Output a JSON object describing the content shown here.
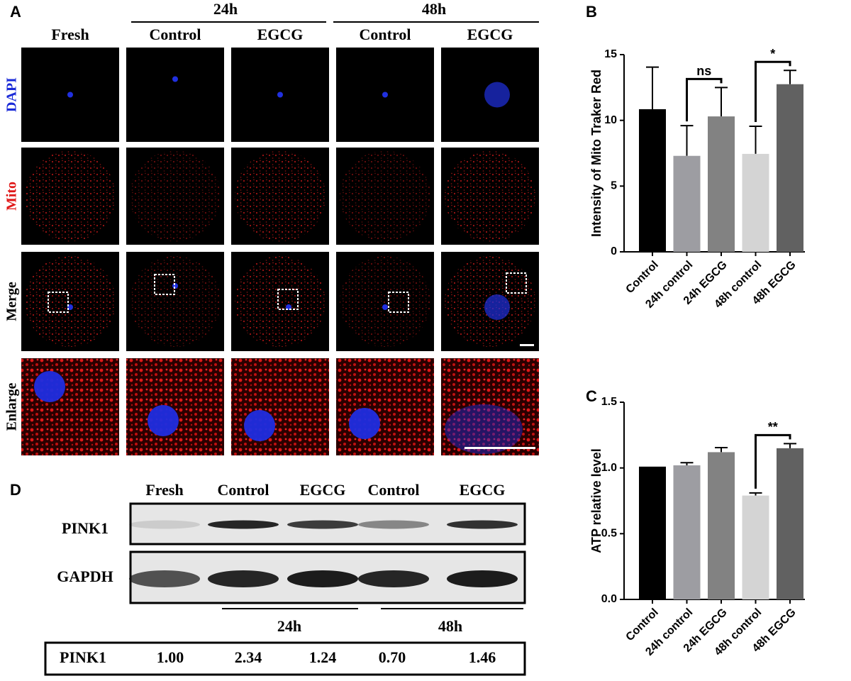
{
  "panel_a": {
    "label": "A",
    "group_labels": [
      "24h",
      "48h"
    ],
    "column_labels": [
      "Fresh",
      "Control",
      "EGCG",
      "Control",
      "EGCG"
    ],
    "row_labels": [
      "DAPI",
      "Mito",
      "Merge",
      "Enlarge"
    ]
  },
  "chart_data": [
    {
      "panel_label": "B",
      "type": "bar",
      "y_label": "Intensity of Mito Traker Red",
      "categories": [
        "Control",
        "24h control",
        "24h EGCG",
        "48h control",
        "48h EGCG"
      ],
      "values": [
        10.85,
        7.3,
        10.3,
        7.45,
        12.75
      ],
      "errors": [
        3.2,
        2.3,
        2.2,
        2.1,
        1.05
      ],
      "colors": [
        "#000000",
        "#9d9da2",
        "#828282",
        "#d4d4d4",
        "#616161"
      ],
      "ylim": [
        0,
        15
      ],
      "yticks": [
        0,
        5,
        10,
        15
      ],
      "annotations": [
        "ns",
        "*"
      ]
    },
    {
      "panel_label": "C",
      "type": "bar",
      "y_label": "ATP relative level",
      "categories": [
        "Control",
        "24h control",
        "24h EGCG",
        "48h control",
        "48h EGCG"
      ],
      "values": [
        1.01,
        1.02,
        1.12,
        0.79,
        1.15
      ],
      "errors": [
        null,
        0.02,
        0.035,
        0.02,
        0.035
      ],
      "colors": [
        "#000000",
        "#9d9da2",
        "#828282",
        "#d4d4d4",
        "#616161"
      ],
      "ylim": [
        0,
        1.5
      ],
      "yticks": [
        {
          "value": 0,
          "label": "0.0"
        },
        {
          "value": 0.5,
          "label": "0.5"
        },
        {
          "value": 1,
          "label": "1.0"
        },
        {
          "value": 1.5,
          "label": "1.5"
        }
      ],
      "annotations": [
        "**"
      ]
    }
  ],
  "panel_d": {
    "label": "D",
    "lane_labels": [
      "Fresh",
      "Control",
      "EGCG",
      "Control",
      "EGCG"
    ],
    "blot_labels": [
      "PINK1",
      "GAPDH"
    ],
    "group_labels": [
      "24h",
      "48h"
    ],
    "table": {
      "row_label": "PINK1",
      "values": [
        "1.00",
        "2.34",
        "1.24",
        "0.70",
        "1.46"
      ]
    }
  }
}
